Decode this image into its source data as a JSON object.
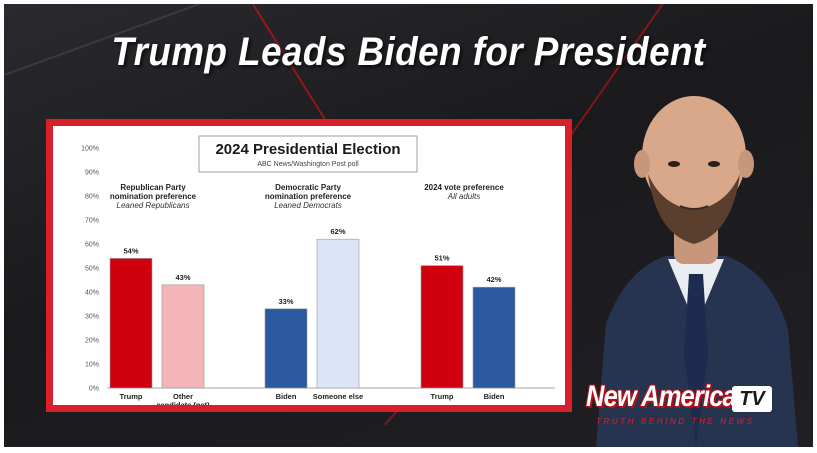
{
  "headline": "Trump Leads Biden for President",
  "brand": {
    "name": "New American",
    "tv": "TV",
    "tagline": "TRUTH BEHIND THE NEWS"
  },
  "colors": {
    "trump_red": "#d0000e",
    "other_pink": "#f3b5b8",
    "biden_blue": "#2c5aa0",
    "someone_light": "#dbe5f7",
    "frame_red": "#d8202a"
  },
  "chart_data": {
    "type": "bar",
    "title": "2024 Presidential Election",
    "subtitle": "ABC News/Washington Post poll",
    "ylim": [
      0,
      100
    ],
    "yticks": [
      "0%",
      "10%",
      "20%",
      "30%",
      "40%",
      "50%",
      "60%",
      "70%",
      "80%",
      "90%",
      "100%"
    ],
    "groups": [
      {
        "title": [
          "Republican Party",
          "nomination preference"
        ],
        "subtitle": "Leaned Republicans",
        "bars": [
          {
            "label": [
              "Trump"
            ],
            "value": 54,
            "text": "54%",
            "color": "#d0000e"
          },
          {
            "label": [
              "Other",
              "candidate (net)"
            ],
            "value": 43,
            "text": "43%",
            "color": "#f3b5b8"
          }
        ]
      },
      {
        "title": [
          "Democratic Party",
          "nomination preference"
        ],
        "subtitle": "Leaned Democrats",
        "bars": [
          {
            "label": [
              "Biden"
            ],
            "value": 33,
            "text": "33%",
            "color": "#2c5aa0"
          },
          {
            "label": [
              "Someone else"
            ],
            "value": 62,
            "text": "62%",
            "color": "#dbe5f7"
          }
        ]
      },
      {
        "title": [
          "2024 vote preference"
        ],
        "subtitle": "All adults",
        "bars": [
          {
            "label": [
              "Trump"
            ],
            "value": 51,
            "text": "51%",
            "color": "#d0000e"
          },
          {
            "label": [
              "Biden"
            ],
            "value": 42,
            "text": "42%",
            "color": "#2c5aa0"
          }
        ]
      }
    ]
  }
}
